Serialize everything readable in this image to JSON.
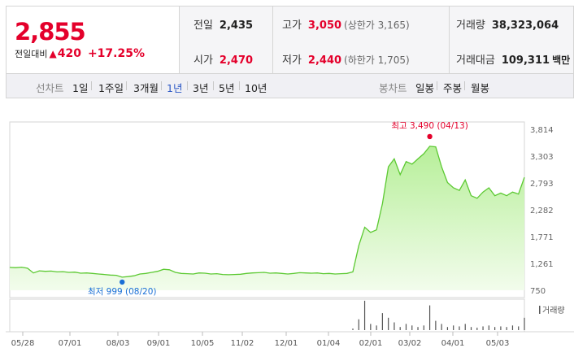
{
  "quote": {
    "price": "2,855",
    "change_label": "전일대비",
    "change_arrow": "▲",
    "change": "420",
    "change_pct": "+17.25%"
  },
  "stats": {
    "prev_close": {
      "label": "전일",
      "value": "2,435"
    },
    "open": {
      "label": "시가",
      "value": "2,470"
    },
    "high": {
      "label": "고가",
      "value": "3,050",
      "sub": "(상한가 3,165)"
    },
    "low": {
      "label": "저가",
      "value": "2,440",
      "sub": "(하한가 1,705)"
    },
    "volume": {
      "label": "거래량",
      "value": "38,323,064"
    },
    "turnover": {
      "label": "거래대금",
      "value": "109,311",
      "unit": "백만"
    }
  },
  "tabs": {
    "line_label": "선차트",
    "line": [
      "1일",
      "1주일",
      "3개월",
      "1년",
      "3년",
      "5년",
      "10년"
    ],
    "active": "1년",
    "candle_label": "봉차트",
    "candle": [
      "일봉",
      "주봉",
      "월봉"
    ]
  },
  "colors": {
    "up": "#e4002b",
    "line": "#5cc932",
    "fill_top": "#b7ef99",
    "fill_bottom": "#f2fcec",
    "low_marker": "#1a6fd6",
    "active_tab": "#2b57c5"
  },
  "chart_data": {
    "type": "area",
    "y_ticks": [
      "3,814",
      "3,303",
      "2,793",
      "2,282",
      "1,771",
      "1,261",
      "750"
    ],
    "ylim": [
      750,
      3814
    ],
    "x_ticks": [
      "05/28",
      "07/01",
      "08/03",
      "09/01",
      "10/05",
      "11/02",
      "12/01",
      "01/04",
      "02/01",
      "03/02",
      "04/01",
      "05/03"
    ],
    "high_annotation": "최고 3,490 (04/13)",
    "low_annotation": "최저 999 (08/20)",
    "volume_legend": "거래량",
    "series": [
      {
        "values": [
          1185,
          1180,
          1190,
          1170,
          1080,
          1120,
          1110,
          1115,
          1100,
          1105,
          1090,
          1095,
          1075,
          1080,
          1070,
          1060,
          1050,
          1040,
          1035,
          999,
          1010,
          1025,
          1060,
          1070,
          1090,
          1110,
          1150,
          1140,
          1090,
          1070,
          1065,
          1060,
          1080,
          1075,
          1060,
          1065,
          1050,
          1045,
          1050,
          1055,
          1070,
          1080,
          1085,
          1090,
          1075,
          1080,
          1070,
          1060,
          1070,
          1085,
          1080,
          1075,
          1080,
          1065,
          1070,
          1060,
          1065,
          1070,
          1100,
          1600,
          1950,
          1850,
          1900,
          2400,
          3100,
          3250,
          2950,
          3200,
          3150,
          3250,
          3350,
          3490,
          3480,
          3100,
          2800,
          2700,
          2650,
          2850,
          2550,
          2500,
          2620,
          2700,
          2550,
          2600,
          2550,
          2620,
          2580,
          2900
        ]
      }
    ],
    "volume": [
      0,
      0,
      0,
      0,
      0,
      0,
      0,
      0,
      0,
      0,
      0,
      0,
      0,
      0,
      0,
      0,
      0,
      0,
      0,
      0,
      0,
      0,
      0,
      0,
      0,
      0,
      0,
      0,
      0,
      0,
      0,
      0,
      0,
      0,
      0,
      0,
      0,
      0,
      0,
      0,
      0,
      0,
      0,
      0,
      0,
      0,
      0,
      0,
      0,
      0,
      0,
      0,
      0,
      0,
      0,
      0,
      0,
      0,
      0.05,
      0.35,
      0.95,
      0.2,
      0.15,
      0.55,
      0.4,
      0.25,
      0.1,
      0.2,
      0.15,
      0.1,
      0.15,
      0.8,
      0.3,
      0.2,
      0.1,
      0.15,
      0.12,
      0.2,
      0.1,
      0.08,
      0.12,
      0.15,
      0.1,
      0.12,
      0.1,
      0.15,
      0.12,
      0.4
    ]
  }
}
